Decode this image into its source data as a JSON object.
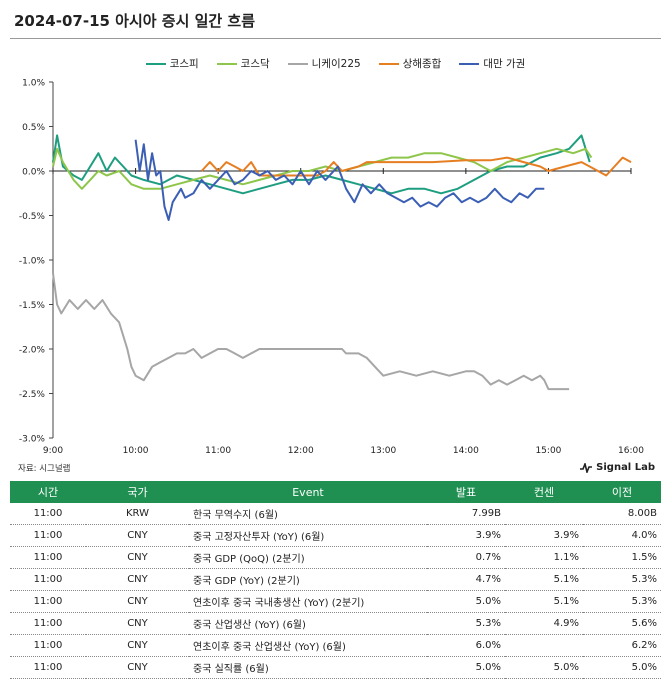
{
  "title": "2024-07-15 아시아 증시 일간 흐름",
  "source": "자료: 시그널랩",
  "brand": "Signal Lab",
  "chart_data": {
    "type": "line",
    "x_ticks": [
      "9:00",
      "10:00",
      "11:00",
      "12:00",
      "13:00",
      "14:00",
      "15:00",
      "16:00"
    ],
    "y_ticks": [
      "1.0%",
      "0.5%",
      "0.0%",
      "-0.5%",
      "-1.0%",
      "-1.5%",
      "-2.0%",
      "-2.5%",
      "-3.0%"
    ],
    "xlim": [
      9.0,
      16.0
    ],
    "ylim": [
      -3.0,
      1.0
    ],
    "series": [
      {
        "name": "코스피",
        "color": "#1e9e80",
        "points": [
          [
            9.0,
            0.1
          ],
          [
            9.05,
            0.4
          ],
          [
            9.12,
            0.05
          ],
          [
            9.25,
            -0.05
          ],
          [
            9.35,
            -0.1
          ],
          [
            9.45,
            0.05
          ],
          [
            9.55,
            0.2
          ],
          [
            9.65,
            0.0
          ],
          [
            9.75,
            0.15
          ],
          [
            9.85,
            0.05
          ],
          [
            9.95,
            -0.05
          ],
          [
            10.1,
            -0.1
          ],
          [
            10.3,
            -0.15
          ],
          [
            10.5,
            -0.05
          ],
          [
            10.7,
            -0.1
          ],
          [
            10.9,
            -0.15
          ],
          [
            11.1,
            -0.2
          ],
          [
            11.3,
            -0.25
          ],
          [
            11.5,
            -0.2
          ],
          [
            11.7,
            -0.15
          ],
          [
            11.9,
            -0.1
          ],
          [
            12.1,
            -0.1
          ],
          [
            12.3,
            -0.05
          ],
          [
            12.5,
            -0.1
          ],
          [
            12.7,
            -0.15
          ],
          [
            12.9,
            -0.2
          ],
          [
            13.1,
            -0.25
          ],
          [
            13.3,
            -0.2
          ],
          [
            13.5,
            -0.2
          ],
          [
            13.7,
            -0.25
          ],
          [
            13.9,
            -0.2
          ],
          [
            14.1,
            -0.1
          ],
          [
            14.3,
            0.0
          ],
          [
            14.5,
            0.05
          ],
          [
            14.7,
            0.05
          ],
          [
            14.9,
            0.15
          ],
          [
            15.1,
            0.2
          ],
          [
            15.25,
            0.25
          ],
          [
            15.4,
            0.4
          ],
          [
            15.5,
            0.1
          ]
        ]
      },
      {
        "name": "코스닥",
        "color": "#8dc64a",
        "points": [
          [
            9.0,
            0.05
          ],
          [
            9.05,
            0.25
          ],
          [
            9.12,
            0.1
          ],
          [
            9.25,
            -0.1
          ],
          [
            9.35,
            -0.2
          ],
          [
            9.45,
            -0.1
          ],
          [
            9.55,
            0.0
          ],
          [
            9.65,
            -0.05
          ],
          [
            9.8,
            0.0
          ],
          [
            9.95,
            -0.15
          ],
          [
            10.1,
            -0.2
          ],
          [
            10.3,
            -0.2
          ],
          [
            10.5,
            -0.15
          ],
          [
            10.7,
            -0.1
          ],
          [
            10.9,
            -0.05
          ],
          [
            11.1,
            -0.1
          ],
          [
            11.3,
            -0.15
          ],
          [
            11.5,
            -0.1
          ],
          [
            11.7,
            -0.05
          ],
          [
            11.9,
            0.0
          ],
          [
            12.1,
            0.0
          ],
          [
            12.3,
            0.05
          ],
          [
            12.5,
            0.0
          ],
          [
            12.7,
            0.05
          ],
          [
            12.9,
            0.1
          ],
          [
            13.1,
            0.15
          ],
          [
            13.3,
            0.15
          ],
          [
            13.5,
            0.2
          ],
          [
            13.7,
            0.2
          ],
          [
            13.9,
            0.15
          ],
          [
            14.1,
            0.1
          ],
          [
            14.3,
            0.0
          ],
          [
            14.5,
            0.1
          ],
          [
            14.7,
            0.15
          ],
          [
            14.9,
            0.2
          ],
          [
            15.1,
            0.25
          ],
          [
            15.3,
            0.2
          ],
          [
            15.45,
            0.25
          ],
          [
            15.52,
            0.15
          ]
        ]
      },
      {
        "name": "니케이225",
        "color": "#a6a6a6",
        "points": [
          [
            9.0,
            -1.15
          ],
          [
            9.05,
            -1.5
          ],
          [
            9.1,
            -1.6
          ],
          [
            9.2,
            -1.45
          ],
          [
            9.3,
            -1.55
          ],
          [
            9.4,
            -1.45
          ],
          [
            9.5,
            -1.55
          ],
          [
            9.6,
            -1.45
          ],
          [
            9.7,
            -1.6
          ],
          [
            9.8,
            -1.7
          ],
          [
            9.9,
            -2.0
          ],
          [
            9.95,
            -2.2
          ],
          [
            10.0,
            -2.3
          ],
          [
            10.1,
            -2.35
          ],
          [
            10.2,
            -2.2
          ],
          [
            10.3,
            -2.15
          ],
          [
            10.4,
            -2.1
          ],
          [
            10.5,
            -2.05
          ],
          [
            10.6,
            -2.05
          ],
          [
            10.7,
            -2.0
          ],
          [
            10.8,
            -2.1
          ],
          [
            10.9,
            -2.05
          ],
          [
            11.0,
            -2.0
          ],
          [
            11.1,
            -2.0
          ],
          [
            11.2,
            -2.05
          ],
          [
            11.3,
            -2.1
          ],
          [
            11.4,
            -2.05
          ],
          [
            11.5,
            -2.0
          ],
          [
            12.0,
            -2.0
          ],
          [
            12.5,
            -2.0
          ],
          [
            12.55,
            -2.05
          ],
          [
            12.7,
            -2.05
          ],
          [
            12.8,
            -2.1
          ],
          [
            12.9,
            -2.2
          ],
          [
            13.0,
            -2.3
          ],
          [
            13.2,
            -2.25
          ],
          [
            13.4,
            -2.3
          ],
          [
            13.6,
            -2.25
          ],
          [
            13.8,
            -2.3
          ],
          [
            14.0,
            -2.25
          ],
          [
            14.1,
            -2.25
          ],
          [
            14.2,
            -2.3
          ],
          [
            14.3,
            -2.4
          ],
          [
            14.4,
            -2.35
          ],
          [
            14.5,
            -2.4
          ],
          [
            14.6,
            -2.35
          ],
          [
            14.7,
            -2.3
          ],
          [
            14.8,
            -2.35
          ],
          [
            14.9,
            -2.3
          ],
          [
            14.95,
            -2.35
          ],
          [
            15.0,
            -2.45
          ],
          [
            15.25,
            -2.45
          ]
        ]
      },
      {
        "name": "상해종합",
        "color": "#e67e22",
        "points": [
          [
            10.8,
            0.0
          ],
          [
            10.9,
            0.1
          ],
          [
            11.0,
            0.0
          ],
          [
            11.1,
            0.1
          ],
          [
            11.2,
            0.05
          ],
          [
            11.3,
            0.0
          ],
          [
            11.4,
            0.1
          ],
          [
            11.5,
            -0.05
          ],
          [
            12.2,
            -0.05
          ],
          [
            12.3,
            0.0
          ],
          [
            12.4,
            0.1
          ],
          [
            12.5,
            0.0
          ],
          [
            12.7,
            0.05
          ],
          [
            12.8,
            0.1
          ],
          [
            13.0,
            0.1
          ],
          [
            13.3,
            0.1
          ],
          [
            13.6,
            0.1
          ],
          [
            14.0,
            0.12
          ],
          [
            14.3,
            0.12
          ],
          [
            14.5,
            0.15
          ],
          [
            14.7,
            0.1
          ],
          [
            14.9,
            0.05
          ],
          [
            15.0,
            0.0
          ],
          [
            15.2,
            0.05
          ],
          [
            15.4,
            0.1
          ],
          [
            15.6,
            0.0
          ],
          [
            15.7,
            -0.05
          ],
          [
            15.8,
            0.05
          ],
          [
            15.9,
            0.15
          ],
          [
            16.0,
            0.1
          ]
        ]
      },
      {
        "name": "대만 가권",
        "color": "#3b5fb5",
        "points": [
          [
            10.0,
            0.35
          ],
          [
            10.05,
            0.0
          ],
          [
            10.1,
            0.3
          ],
          [
            10.15,
            -0.1
          ],
          [
            10.2,
            0.2
          ],
          [
            10.25,
            -0.05
          ],
          [
            10.3,
            0.0
          ],
          [
            10.35,
            -0.4
          ],
          [
            10.4,
            -0.55
          ],
          [
            10.45,
            -0.35
          ],
          [
            10.55,
            -0.2
          ],
          [
            10.6,
            -0.3
          ],
          [
            10.7,
            -0.25
          ],
          [
            10.8,
            -0.1
          ],
          [
            10.9,
            -0.2
          ],
          [
            11.0,
            -0.1
          ],
          [
            11.1,
            0.0
          ],
          [
            11.2,
            -0.15
          ],
          [
            11.3,
            -0.1
          ],
          [
            11.4,
            0.0
          ],
          [
            11.5,
            -0.05
          ],
          [
            11.6,
            0.0
          ],
          [
            11.7,
            -0.1
          ],
          [
            11.8,
            -0.05
          ],
          [
            11.9,
            -0.15
          ],
          [
            12.0,
            0.0
          ],
          [
            12.1,
            -0.15
          ],
          [
            12.2,
            0.0
          ],
          [
            12.3,
            -0.1
          ],
          [
            12.45,
            0.05
          ],
          [
            12.55,
            -0.2
          ],
          [
            12.65,
            -0.35
          ],
          [
            12.75,
            -0.15
          ],
          [
            12.85,
            -0.25
          ],
          [
            12.95,
            -0.15
          ],
          [
            13.05,
            -0.25
          ],
          [
            13.15,
            -0.3
          ],
          [
            13.25,
            -0.35
          ],
          [
            13.35,
            -0.3
          ],
          [
            13.45,
            -0.4
          ],
          [
            13.55,
            -0.35
          ],
          [
            13.65,
            -0.4
          ],
          [
            13.75,
            -0.3
          ],
          [
            13.85,
            -0.25
          ],
          [
            13.95,
            -0.35
          ],
          [
            14.05,
            -0.3
          ],
          [
            14.15,
            -0.35
          ],
          [
            14.25,
            -0.3
          ],
          [
            14.35,
            -0.2
          ],
          [
            14.45,
            -0.3
          ],
          [
            14.55,
            -0.35
          ],
          [
            14.65,
            -0.25
          ],
          [
            14.75,
            -0.3
          ],
          [
            14.85,
            -0.2
          ],
          [
            14.95,
            -0.2
          ]
        ]
      }
    ]
  },
  "table": {
    "headers": [
      "시간",
      "국가",
      "Event",
      "발표",
      "컨센",
      "이전"
    ],
    "rows": [
      [
        "11:00",
        "KRW",
        "한국 무역수지 (6월)",
        "7.99B",
        "",
        "8.00B"
      ],
      [
        "11:00",
        "CNY",
        "중국 고정자산투자 (YoY) (6월)",
        "3.9%",
        "3.9%",
        "4.0%"
      ],
      [
        "11:00",
        "CNY",
        "중국 GDP (QoQ) (2분기)",
        "0.7%",
        "1.1%",
        "1.5%"
      ],
      [
        "11:00",
        "CNY",
        "중국 GDP (YoY) (2분기)",
        "4.7%",
        "5.1%",
        "5.3%"
      ],
      [
        "11:00",
        "CNY",
        "연초이후 중국 국내총생산 (YoY) (2분기)",
        "5.0%",
        "5.1%",
        "5.3%"
      ],
      [
        "11:00",
        "CNY",
        "중국 산업생산 (YoY) (6월)",
        "5.3%",
        "4.9%",
        "5.6%"
      ],
      [
        "11:00",
        "CNY",
        "연초이후 중국 산업생산 (YoY) (6월)",
        "6.0%",
        "",
        "6.2%"
      ],
      [
        "11:00",
        "CNY",
        "중국 실직률 (6월)",
        "5.0%",
        "5.0%",
        "5.0%"
      ]
    ]
  }
}
